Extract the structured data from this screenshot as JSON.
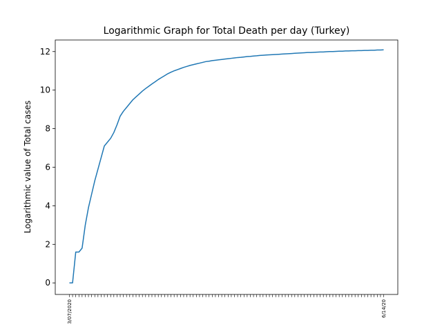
{
  "chart_data": {
    "type": "line",
    "title": "Logarithmic Graph for Total Death per day (Turkey)",
    "xlabel": "",
    "ylabel": "Logarithmic value of Total cases",
    "ylim": [
      -0.6,
      12.6
    ],
    "yticks": [
      0,
      2,
      4,
      6,
      8,
      10,
      12
    ],
    "grid": false,
    "legend": "none",
    "line_color": "#1f77b4",
    "x_first_label": "3/07/2020",
    "x_last_label": "6/14/20",
    "series": [
      {
        "x": [
          1,
          2,
          3,
          4,
          5,
          6,
          7,
          8,
          9,
          10,
          11,
          12,
          13,
          14,
          15,
          16,
          17,
          18,
          19,
          20,
          21,
          22,
          23,
          24,
          25,
          26,
          27,
          28,
          29,
          30,
          31,
          32,
          33,
          34,
          35,
          36,
          37,
          38,
          39,
          40,
          41,
          42,
          43,
          44,
          45,
          46,
          47,
          48,
          49,
          50,
          51,
          52,
          53,
          54,
          55,
          56,
          57,
          58,
          59,
          60,
          61,
          62,
          63,
          64,
          65,
          66,
          67,
          68,
          69,
          70,
          71,
          72,
          73,
          74,
          75,
          76,
          77,
          78,
          79,
          80,
          81,
          82,
          83,
          84,
          85,
          86,
          87,
          88,
          89,
          90,
          91,
          92,
          93,
          94,
          95,
          96,
          97,
          98,
          99,
          100
        ],
        "values": [
          0,
          0,
          1.6,
          1.6,
          1.8,
          3.0,
          3.9,
          4.6,
          5.3,
          5.9,
          6.5,
          7.1,
          7.3,
          7.5,
          7.8,
          8.2,
          8.65,
          8.9,
          9.1,
          9.3,
          9.5,
          9.65,
          9.8,
          9.95,
          10.08,
          10.2,
          10.32,
          10.43,
          10.55,
          10.65,
          10.75,
          10.85,
          10.93,
          11.0,
          11.06,
          11.12,
          11.18,
          11.23,
          11.28,
          11.32,
          11.36,
          11.4,
          11.44,
          11.48,
          11.5,
          11.53,
          11.55,
          11.57,
          11.59,
          11.61,
          11.63,
          11.65,
          11.67,
          11.69,
          11.7,
          11.72,
          11.74,
          11.75,
          11.77,
          11.78,
          11.8,
          11.81,
          11.82,
          11.83,
          11.84,
          11.85,
          11.86,
          11.87,
          11.88,
          11.89,
          11.9,
          11.91,
          11.92,
          11.93,
          11.94,
          11.95,
          11.95,
          11.96,
          11.97,
          11.98,
          11.98,
          11.99,
          12.0,
          12.0,
          12.01,
          12.02,
          12.02,
          12.03,
          12.03,
          12.04,
          12.04,
          12.05,
          12.05,
          12.06,
          12.06,
          12.07,
          12.07,
          12.08,
          12.08,
          12.09
        ]
      }
    ]
  }
}
